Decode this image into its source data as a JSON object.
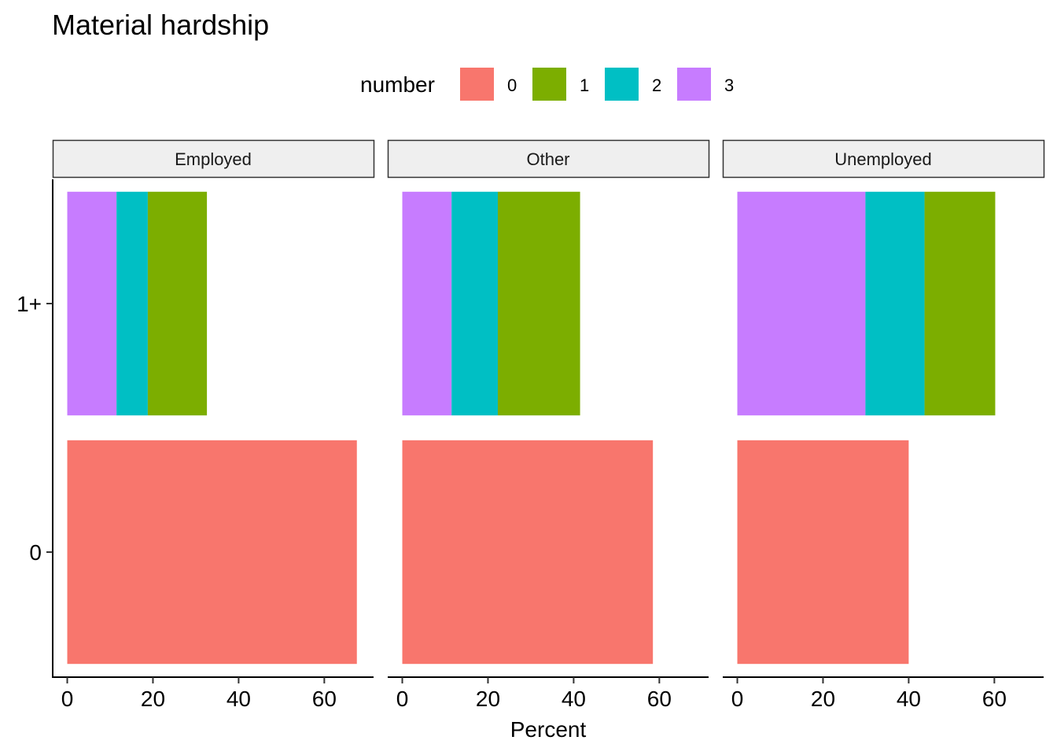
{
  "chart_data": {
    "type": "bar",
    "orientation": "horizontal",
    "stacked": true,
    "title": "Material hardship",
    "xlabel": "Percent",
    "ylabel": "",
    "xlim": [
      -3.4,
      71.5
    ],
    "xticks": [
      0,
      20,
      40,
      60
    ],
    "categories": [
      "0",
      "1+"
    ],
    "legend": {
      "title": "number",
      "position": "top",
      "entries": [
        {
          "label": "0",
          "color": "#F8766D"
        },
        {
          "label": "1",
          "color": "#7CAE00"
        },
        {
          "label": "2",
          "color": "#00BFC4"
        },
        {
          "label": "3",
          "color": "#C77CFF"
        }
      ]
    },
    "grid": false,
    "panels": [
      {
        "name": "Employed",
        "bars": [
          {
            "category": "0",
            "segments": [
              {
                "number": "0",
                "value": 67.6
              }
            ]
          },
          {
            "category": "1+",
            "segments": [
              {
                "number": "3",
                "value": 11.5
              },
              {
                "number": "2",
                "value": 7.3
              },
              {
                "number": "1",
                "value": 13.8
              }
            ]
          }
        ]
      },
      {
        "name": "Other",
        "bars": [
          {
            "category": "0",
            "segments": [
              {
                "number": "0",
                "value": 58.5
              }
            ]
          },
          {
            "category": "1+",
            "segments": [
              {
                "number": "3",
                "value": 11.5
              },
              {
                "number": "2",
                "value": 10.8
              },
              {
                "number": "1",
                "value": 19.2
              }
            ]
          }
        ]
      },
      {
        "name": "Unemployed",
        "bars": [
          {
            "category": "0",
            "segments": [
              {
                "number": "0",
                "value": 40.0
              }
            ]
          },
          {
            "category": "1+",
            "segments": [
              {
                "number": "3",
                "value": 29.9
              },
              {
                "number": "2",
                "value": 13.8
              },
              {
                "number": "1",
                "value": 16.5
              }
            ]
          }
        ]
      }
    ]
  }
}
